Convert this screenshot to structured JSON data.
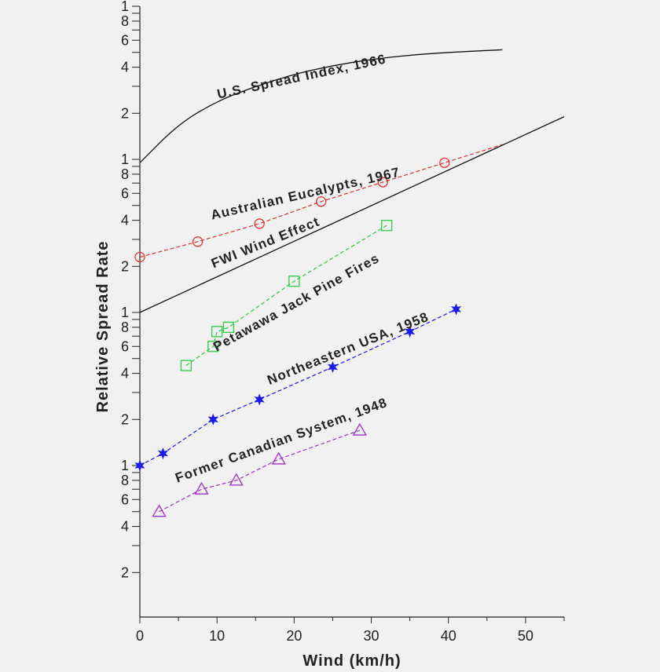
{
  "chart_data": {
    "type": "line",
    "title": "",
    "xlabel": "Wind (km/h)",
    "ylabel": "Relative Spread Rate",
    "xlim": [
      0,
      55
    ],
    "x_ticks": [
      0,
      10,
      20,
      30,
      40,
      50
    ],
    "y_scale": "log",
    "y_decade_tick_labels": [
      "1",
      "2",
      "4",
      "6",
      "8"
    ],
    "y_top_label": "1",
    "grid": false,
    "legend": "none",
    "series": [
      {
        "name": "U.S. Spread Index, 1966",
        "line_style": "solid",
        "marker": "none",
        "color": "#111111",
        "x": [
          0,
          5,
          10,
          15,
          20,
          25,
          30,
          35,
          40,
          47
        ],
        "y": [
          9.5,
          17,
          24,
          30,
          36,
          41,
          45,
          48,
          50,
          52
        ]
      },
      {
        "name": "Australian Eucalypts, 1967",
        "line_style": "dashed",
        "marker": "circle",
        "color": "#e03030",
        "x": [
          0,
          7.5,
          15.5,
          23.5,
          31.5,
          39.5
        ],
        "y": [
          2.3,
          2.9,
          3.8,
          5.3,
          7.1,
          9.5
        ],
        "line_extends_to_x": 47
      },
      {
        "name": "FWI Wind Effect",
        "line_style": "solid",
        "marker": "none",
        "color": "#111111",
        "x": [
          0,
          55
        ],
        "y": [
          1.0,
          19
        ]
      },
      {
        "name": "Petawawa Jack Pine Fires",
        "line_style": "dashed",
        "marker": "square",
        "color": "#2ecc40",
        "x": [
          6,
          9.5,
          10,
          11.5,
          20,
          32
        ],
        "y": [
          0.45,
          0.6,
          0.75,
          0.8,
          1.6,
          3.7
        ]
      },
      {
        "name": "Northeastern USA, 1958",
        "line_style": "dashed",
        "marker": "star",
        "color": "#1a1aee",
        "x": [
          0,
          3,
          9.5,
          15.5,
          25,
          35,
          41
        ],
        "y": [
          0.1,
          0.12,
          0.2,
          0.27,
          0.44,
          0.75,
          1.05
        ]
      },
      {
        "name": "Former Canadian System, 1948",
        "line_style": "dashed",
        "marker": "triangle",
        "color": "#9b30c8",
        "x": [
          2.5,
          8,
          12.5,
          18,
          28.5
        ],
        "y": [
          0.05,
          0.07,
          0.08,
          0.11,
          0.17
        ]
      }
    ],
    "curve_labels": [
      "U.S. Spread Index, 1966",
      "Australian Eucalypts, 1967",
      "FWI Wind Effect",
      "Petawawa Jack Pine Fires",
      "Northeastern USA, 1958",
      "Former Canadian System, 1948"
    ]
  }
}
